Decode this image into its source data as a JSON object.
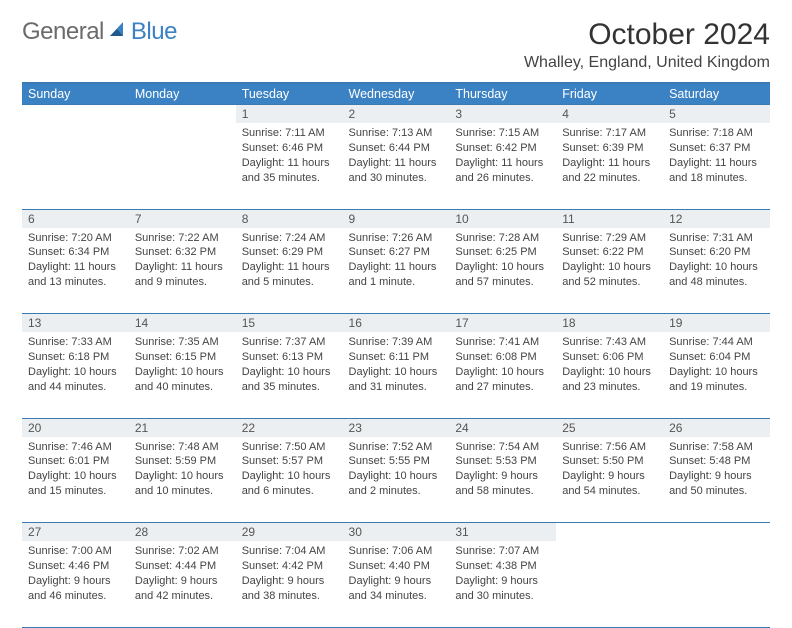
{
  "logo": {
    "general": "General",
    "blue": "Blue"
  },
  "title": "October 2024",
  "location": "Whalley, England, United Kingdom",
  "dayHeaders": [
    "Sunday",
    "Monday",
    "Tuesday",
    "Wednesday",
    "Thursday",
    "Friday",
    "Saturday"
  ],
  "grid": [
    [
      null,
      null,
      {
        "n": "1",
        "sr": "7:11 AM",
        "ss": "6:46 PM",
        "dl": "11 hours and 35 minutes."
      },
      {
        "n": "2",
        "sr": "7:13 AM",
        "ss": "6:44 PM",
        "dl": "11 hours and 30 minutes."
      },
      {
        "n": "3",
        "sr": "7:15 AM",
        "ss": "6:42 PM",
        "dl": "11 hours and 26 minutes."
      },
      {
        "n": "4",
        "sr": "7:17 AM",
        "ss": "6:39 PM",
        "dl": "11 hours and 22 minutes."
      },
      {
        "n": "5",
        "sr": "7:18 AM",
        "ss": "6:37 PM",
        "dl": "11 hours and 18 minutes."
      }
    ],
    [
      {
        "n": "6",
        "sr": "7:20 AM",
        "ss": "6:34 PM",
        "dl": "11 hours and 13 minutes."
      },
      {
        "n": "7",
        "sr": "7:22 AM",
        "ss": "6:32 PM",
        "dl": "11 hours and 9 minutes."
      },
      {
        "n": "8",
        "sr": "7:24 AM",
        "ss": "6:29 PM",
        "dl": "11 hours and 5 minutes."
      },
      {
        "n": "9",
        "sr": "7:26 AM",
        "ss": "6:27 PM",
        "dl": "11 hours and 1 minute."
      },
      {
        "n": "10",
        "sr": "7:28 AM",
        "ss": "6:25 PM",
        "dl": "10 hours and 57 minutes."
      },
      {
        "n": "11",
        "sr": "7:29 AM",
        "ss": "6:22 PM",
        "dl": "10 hours and 52 minutes."
      },
      {
        "n": "12",
        "sr": "7:31 AM",
        "ss": "6:20 PM",
        "dl": "10 hours and 48 minutes."
      }
    ],
    [
      {
        "n": "13",
        "sr": "7:33 AM",
        "ss": "6:18 PM",
        "dl": "10 hours and 44 minutes."
      },
      {
        "n": "14",
        "sr": "7:35 AM",
        "ss": "6:15 PM",
        "dl": "10 hours and 40 minutes."
      },
      {
        "n": "15",
        "sr": "7:37 AM",
        "ss": "6:13 PM",
        "dl": "10 hours and 35 minutes."
      },
      {
        "n": "16",
        "sr": "7:39 AM",
        "ss": "6:11 PM",
        "dl": "10 hours and 31 minutes."
      },
      {
        "n": "17",
        "sr": "7:41 AM",
        "ss": "6:08 PM",
        "dl": "10 hours and 27 minutes."
      },
      {
        "n": "18",
        "sr": "7:43 AM",
        "ss": "6:06 PM",
        "dl": "10 hours and 23 minutes."
      },
      {
        "n": "19",
        "sr": "7:44 AM",
        "ss": "6:04 PM",
        "dl": "10 hours and 19 minutes."
      }
    ],
    [
      {
        "n": "20",
        "sr": "7:46 AM",
        "ss": "6:01 PM",
        "dl": "10 hours and 15 minutes."
      },
      {
        "n": "21",
        "sr": "7:48 AM",
        "ss": "5:59 PM",
        "dl": "10 hours and 10 minutes."
      },
      {
        "n": "22",
        "sr": "7:50 AM",
        "ss": "5:57 PM",
        "dl": "10 hours and 6 minutes."
      },
      {
        "n": "23",
        "sr": "7:52 AM",
        "ss": "5:55 PM",
        "dl": "10 hours and 2 minutes."
      },
      {
        "n": "24",
        "sr": "7:54 AM",
        "ss": "5:53 PM",
        "dl": "9 hours and 58 minutes."
      },
      {
        "n": "25",
        "sr": "7:56 AM",
        "ss": "5:50 PM",
        "dl": "9 hours and 54 minutes."
      },
      {
        "n": "26",
        "sr": "7:58 AM",
        "ss": "5:48 PM",
        "dl": "9 hours and 50 minutes."
      }
    ],
    [
      {
        "n": "27",
        "sr": "7:00 AM",
        "ss": "4:46 PM",
        "dl": "9 hours and 46 minutes."
      },
      {
        "n": "28",
        "sr": "7:02 AM",
        "ss": "4:44 PM",
        "dl": "9 hours and 42 minutes."
      },
      {
        "n": "29",
        "sr": "7:04 AM",
        "ss": "4:42 PM",
        "dl": "9 hours and 38 minutes."
      },
      {
        "n": "30",
        "sr": "7:06 AM",
        "ss": "4:40 PM",
        "dl": "9 hours and 34 minutes."
      },
      {
        "n": "31",
        "sr": "7:07 AM",
        "ss": "4:38 PM",
        "dl": "9 hours and 30 minutes."
      },
      null,
      null
    ]
  ],
  "labels": {
    "sunrise": "Sunrise: ",
    "sunset": "Sunset: ",
    "daylight": "Daylight: "
  },
  "colors": {
    "brand": "#3b82c4",
    "rule": "#3b7bb3",
    "daybg": "#eceff1"
  }
}
